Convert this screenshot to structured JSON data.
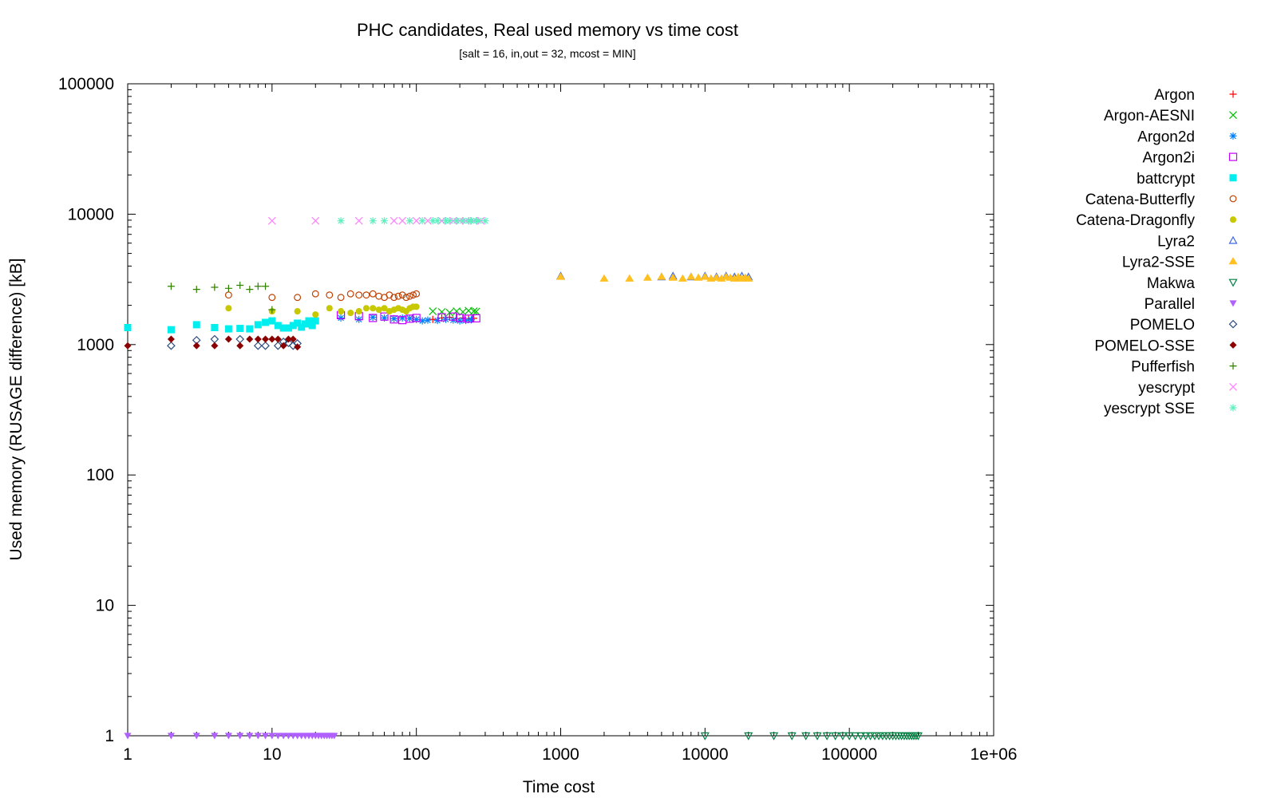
{
  "chart_data": {
    "type": "scatter",
    "title": "PHC candidates, Real used memory vs time cost",
    "subtitle": "[salt = 16, in,out = 32, mcost = MIN]",
    "xlabel": "Time cost",
    "ylabel": "Used memory (RUSAGE difference) [kB]",
    "xscale": "log",
    "yscale": "log",
    "xlim": [
      1,
      1000000
    ],
    "ylim": [
      1,
      100000
    ],
    "grid": false,
    "legend_position": "right",
    "x_ticks": [
      {
        "value": 1,
        "label": "1"
      },
      {
        "value": 10,
        "label": "10"
      },
      {
        "value": 100,
        "label": "100"
      },
      {
        "value": 1000,
        "label": "1000"
      },
      {
        "value": 10000,
        "label": "10000"
      },
      {
        "value": 100000,
        "label": "100000"
      },
      {
        "value": 1000000,
        "label": "1e+06"
      }
    ],
    "y_ticks": [
      {
        "value": 1,
        "label": "1"
      },
      {
        "value": 10,
        "label": "10"
      },
      {
        "value": 100,
        "label": "100"
      },
      {
        "value": 1000,
        "label": "1000"
      },
      {
        "value": 10000,
        "label": "10000"
      },
      {
        "value": 100000,
        "label": "100000"
      }
    ],
    "series": [
      {
        "name": "Argon",
        "color": "#ff0000",
        "marker": "plus",
        "points": [
          [
            130,
            1560
          ],
          [
            150,
            1600
          ],
          [
            170,
            1620
          ],
          [
            190,
            1580
          ],
          [
            210,
            1600
          ],
          [
            230,
            1570
          ],
          [
            250,
            1590
          ]
        ]
      },
      {
        "name": "Argon-AESNI",
        "color": "#00c000",
        "marker": "cross",
        "points": [
          [
            130,
            1800
          ],
          [
            150,
            1780
          ],
          [
            170,
            1760
          ],
          [
            190,
            1800
          ],
          [
            210,
            1780
          ],
          [
            230,
            1820
          ],
          [
            250,
            1800
          ],
          [
            260,
            1790
          ]
        ]
      },
      {
        "name": "Argon2d",
        "color": "#0080ff",
        "marker": "star",
        "points": [
          [
            30,
            1600
          ],
          [
            40,
            1560
          ],
          [
            50,
            1620
          ],
          [
            60,
            1600
          ],
          [
            70,
            1580
          ],
          [
            80,
            1600
          ],
          [
            90,
            1590
          ],
          [
            100,
            1560
          ],
          [
            110,
            1520
          ],
          [
            120,
            1540
          ],
          [
            140,
            1530
          ],
          [
            160,
            1560
          ],
          [
            180,
            1540
          ],
          [
            200,
            1520
          ],
          [
            220,
            1530
          ],
          [
            240,
            1550
          ]
        ]
      },
      {
        "name": "Argon2i",
        "color": "#c000ff",
        "marker": "open-square",
        "points": [
          [
            30,
            1680
          ],
          [
            40,
            1650
          ],
          [
            50,
            1600
          ],
          [
            60,
            1640
          ],
          [
            70,
            1560
          ],
          [
            80,
            1540
          ],
          [
            90,
            1580
          ],
          [
            100,
            1600
          ],
          [
            150,
            1620
          ],
          [
            180,
            1640
          ],
          [
            200,
            1600
          ],
          [
            230,
            1580
          ],
          [
            260,
            1590
          ]
        ]
      },
      {
        "name": "battcrypt",
        "color": "#00eeee",
        "marker": "filled-square",
        "points": [
          [
            1,
            1350
          ],
          [
            2,
            1300
          ],
          [
            3,
            1420
          ],
          [
            4,
            1350
          ],
          [
            5,
            1320
          ],
          [
            6,
            1330
          ],
          [
            7,
            1320
          ],
          [
            8,
            1420
          ],
          [
            9,
            1480
          ],
          [
            10,
            1520
          ],
          [
            11,
            1400
          ],
          [
            12,
            1340
          ],
          [
            13,
            1340
          ],
          [
            14,
            1400
          ],
          [
            15,
            1460
          ],
          [
            16,
            1360
          ],
          [
            17,
            1440
          ],
          [
            18,
            1520
          ],
          [
            19,
            1400
          ],
          [
            20,
            1520
          ]
        ]
      },
      {
        "name": "Catena-Butterfly",
        "color": "#c04000",
        "marker": "open-circle",
        "points": [
          [
            5,
            2400
          ],
          [
            10,
            2300
          ],
          [
            15,
            2300
          ],
          [
            20,
            2450
          ],
          [
            25,
            2400
          ],
          [
            30,
            2300
          ],
          [
            35,
            2450
          ],
          [
            40,
            2400
          ],
          [
            45,
            2400
          ],
          [
            50,
            2450
          ],
          [
            55,
            2350
          ],
          [
            60,
            2300
          ],
          [
            65,
            2400
          ],
          [
            70,
            2300
          ],
          [
            75,
            2350
          ],
          [
            80,
            2400
          ],
          [
            85,
            2300
          ],
          [
            90,
            2350
          ],
          [
            95,
            2400
          ],
          [
            100,
            2450
          ]
        ]
      },
      {
        "name": "Catena-Dragonfly",
        "color": "#c8c800",
        "marker": "filled-circle",
        "points": [
          [
            5,
            1900
          ],
          [
            10,
            1800
          ],
          [
            15,
            1800
          ],
          [
            20,
            1700
          ],
          [
            25,
            1900
          ],
          [
            30,
            1800
          ],
          [
            35,
            1750
          ],
          [
            40,
            1800
          ],
          [
            45,
            1900
          ],
          [
            50,
            1900
          ],
          [
            55,
            1850
          ],
          [
            60,
            1900
          ],
          [
            65,
            1800
          ],
          [
            70,
            1850
          ],
          [
            75,
            1900
          ],
          [
            80,
            1850
          ],
          [
            85,
            1800
          ],
          [
            90,
            1900
          ],
          [
            95,
            1950
          ],
          [
            100,
            1950
          ]
        ]
      },
      {
        "name": "Lyra2",
        "color": "#4169e1",
        "marker": "open-triangle",
        "points": [
          [
            1000,
            3350
          ],
          [
            5000,
            3300
          ],
          [
            6000,
            3350
          ],
          [
            8000,
            3300
          ],
          [
            10000,
            3350
          ],
          [
            12000,
            3300
          ],
          [
            14000,
            3350
          ],
          [
            16000,
            3300
          ],
          [
            18000,
            3350
          ],
          [
            20000,
            3300
          ]
        ]
      },
      {
        "name": "Lyra2-SSE",
        "color": "#ffc020",
        "marker": "filled-triangle",
        "points": [
          [
            1000,
            3300
          ],
          [
            2000,
            3200
          ],
          [
            3000,
            3200
          ],
          [
            4000,
            3250
          ],
          [
            5000,
            3300
          ],
          [
            6000,
            3250
          ],
          [
            7000,
            3200
          ],
          [
            8000,
            3300
          ],
          [
            9000,
            3250
          ],
          [
            10000,
            3300
          ],
          [
            11000,
            3200
          ],
          [
            12000,
            3250
          ],
          [
            13000,
            3200
          ],
          [
            14000,
            3300
          ],
          [
            15000,
            3250
          ],
          [
            16000,
            3200
          ],
          [
            17000,
            3300
          ],
          [
            18000,
            3200
          ],
          [
            19000,
            3250
          ],
          [
            20000,
            3200
          ]
        ]
      },
      {
        "name": "Makwa",
        "color": "#008040",
        "marker": "open-down-triangle",
        "points": [
          [
            10000,
            1
          ],
          [
            20000,
            1
          ],
          [
            30000,
            1
          ],
          [
            40000,
            1
          ],
          [
            50000,
            1
          ],
          [
            60000,
            1
          ],
          [
            70000,
            1
          ],
          [
            80000,
            1
          ],
          [
            90000,
            1
          ],
          [
            100000,
            1
          ],
          [
            110000,
            1
          ],
          [
            120000,
            1
          ],
          [
            130000,
            1
          ],
          [
            140000,
            1
          ],
          [
            150000,
            1
          ],
          [
            160000,
            1
          ],
          [
            170000,
            1
          ],
          [
            180000,
            1
          ],
          [
            190000,
            1
          ],
          [
            200000,
            1
          ],
          [
            210000,
            1
          ],
          [
            220000,
            1
          ],
          [
            230000,
            1
          ],
          [
            240000,
            1
          ],
          [
            250000,
            1
          ],
          [
            260000,
            1
          ],
          [
            270000,
            1
          ],
          [
            280000,
            1
          ],
          [
            290000,
            1
          ],
          [
            300000,
            1
          ]
        ]
      },
      {
        "name": "Parallel",
        "color": "#b060ff",
        "marker": "filled-down-triangle",
        "points": [
          [
            1,
            1
          ],
          [
            2,
            1
          ],
          [
            3,
            1
          ],
          [
            4,
            1
          ],
          [
            5,
            1
          ],
          [
            6,
            1
          ],
          [
            7,
            1
          ],
          [
            8,
            1
          ],
          [
            9,
            1
          ],
          [
            10,
            1
          ],
          [
            11,
            1
          ],
          [
            12,
            1
          ],
          [
            13,
            1
          ],
          [
            14,
            1
          ],
          [
            15,
            1
          ],
          [
            16,
            1
          ],
          [
            17,
            1
          ],
          [
            18,
            1
          ],
          [
            19,
            1
          ],
          [
            20,
            1
          ],
          [
            21,
            1
          ],
          [
            22,
            1
          ],
          [
            23,
            1
          ],
          [
            24,
            1
          ],
          [
            25,
            1
          ],
          [
            26,
            1
          ],
          [
            27,
            1
          ]
        ]
      },
      {
        "name": "POMELO",
        "color": "#2f4f7f",
        "marker": "open-diamond",
        "points": [
          [
            2,
            980
          ],
          [
            3,
            1080
          ],
          [
            4,
            1100
          ],
          [
            6,
            1100
          ],
          [
            8,
            980
          ],
          [
            9,
            980
          ],
          [
            11,
            980
          ],
          [
            12,
            1050
          ],
          [
            13,
            1030
          ],
          [
            14,
            980
          ],
          [
            15,
            1020
          ]
        ]
      },
      {
        "name": "POMELO-SSE",
        "color": "#8b0000",
        "marker": "filled-diamond",
        "points": [
          [
            1,
            980
          ],
          [
            2,
            1100
          ],
          [
            3,
            980
          ],
          [
            4,
            980
          ],
          [
            5,
            1100
          ],
          [
            6,
            980
          ],
          [
            7,
            1100
          ],
          [
            8,
            1100
          ],
          [
            9,
            1100
          ],
          [
            10,
            1100
          ],
          [
            11,
            1100
          ],
          [
            12,
            980
          ],
          [
            13,
            1100
          ],
          [
            14,
            1100
          ],
          [
            15,
            960
          ]
        ]
      },
      {
        "name": "Pufferfish",
        "color": "#308000",
        "marker": "plus",
        "points": [
          [
            2,
            2800
          ],
          [
            3,
            2650
          ],
          [
            4,
            2750
          ],
          [
            5,
            2700
          ],
          [
            6,
            2850
          ],
          [
            7,
            2650
          ],
          [
            8,
            2800
          ],
          [
            9,
            2800
          ],
          [
            10,
            1850
          ]
        ]
      },
      {
        "name": "yescrypt",
        "color": "#ff80ff",
        "marker": "cross",
        "points": [
          [
            10,
            8900
          ],
          [
            20,
            8900
          ],
          [
            40,
            8900
          ],
          [
            70,
            8900
          ],
          [
            80,
            8900
          ],
          [
            100,
            8900
          ],
          [
            120,
            8900
          ],
          [
            150,
            8900
          ],
          [
            180,
            8900
          ],
          [
            200,
            8900
          ],
          [
            220,
            8900
          ],
          [
            250,
            8900
          ],
          [
            280,
            8900
          ]
        ]
      },
      {
        "name": "yescrypt SSE",
        "color": "#60f0c0",
        "marker": "star",
        "points": [
          [
            30,
            8900
          ],
          [
            50,
            8900
          ],
          [
            60,
            8900
          ],
          [
            90,
            8900
          ],
          [
            110,
            8900
          ],
          [
            130,
            8900
          ],
          [
            140,
            8900
          ],
          [
            160,
            8900
          ],
          [
            170,
            8900
          ],
          [
            190,
            8900
          ],
          [
            210,
            8900
          ],
          [
            230,
            8900
          ],
          [
            240,
            8900
          ],
          [
            260,
            8900
          ],
          [
            270,
            8900
          ],
          [
            300,
            8900
          ]
        ]
      }
    ]
  }
}
